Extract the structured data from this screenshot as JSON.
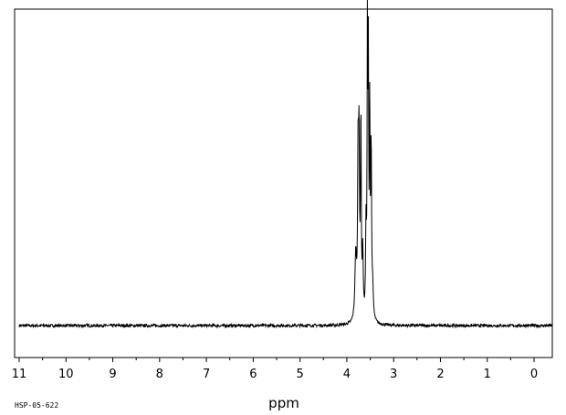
{
  "sample_id": "HSP-05-622",
  "chart_data": {
    "type": "line",
    "xlabel": "ppm",
    "xlim": [
      11,
      -0.4
    ],
    "x_reversed": true,
    "x_ticks": [
      11,
      10,
      9,
      8,
      7,
      6,
      5,
      4,
      3,
      2,
      1,
      0
    ],
    "grid": false,
    "legend": "none",
    "baseline_noise": 0.005,
    "series": [
      {
        "values_description_free": true,
        "peaks": [
          {
            "ppm": 3.81,
            "height": 0.22,
            "width": 0.02
          },
          {
            "ppm": 3.76,
            "height": 0.52,
            "width": 0.012
          },
          {
            "ppm": 3.74,
            "height": 0.56,
            "width": 0.012
          },
          {
            "ppm": 3.7,
            "height": 0.69,
            "width": 0.01
          },
          {
            "ppm": 3.66,
            "height": 0.22,
            "width": 0.012
          },
          {
            "ppm": 3.59,
            "height": 0.3,
            "width": 0.01
          },
          {
            "ppm": 3.56,
            "height": 0.98,
            "width": 0.008
          },
          {
            "ppm": 3.54,
            "height": 0.83,
            "width": 0.008
          },
          {
            "ppm": 3.51,
            "height": 0.7,
            "width": 0.009
          },
          {
            "ppm": 3.48,
            "height": 0.58,
            "width": 0.01
          },
          {
            "ppm": 3.45,
            "height": 0.1,
            "width": 0.018
          }
        ]
      }
    ]
  }
}
